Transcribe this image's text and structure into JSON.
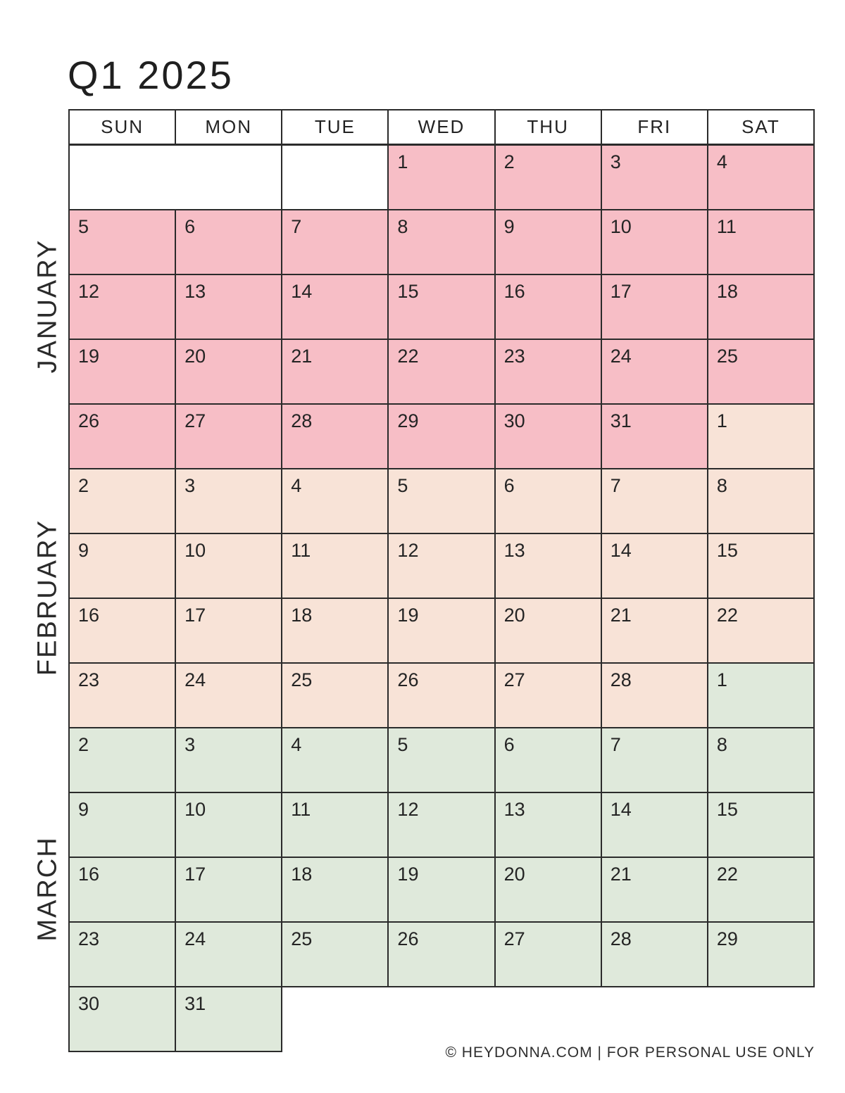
{
  "page": {
    "title": "Q1 2025",
    "footer": "© HEYDONNA.COM   |  FOR PERSONAL USE ONLY"
  },
  "colors": {
    "january_pink": "#f7bec6",
    "february_peach": "#f8e3d7",
    "march_green": "#dfe9db",
    "grid_border": "#2b2b2b"
  },
  "calendar": {
    "day_headers": [
      "SUN",
      "MON",
      "TUE",
      "WED",
      "THU",
      "FRI",
      "SAT"
    ],
    "month_labels": [
      "JANUARY",
      "FEBRUARY",
      "MARCH"
    ],
    "rows": [
      [
        {
          "m": "blank",
          "d": "",
          "span": 2
        },
        {
          "m": "blank",
          "d": ""
        },
        {
          "m": "jan",
          "d": "1"
        },
        {
          "m": "jan",
          "d": "2"
        },
        {
          "m": "jan",
          "d": "3"
        },
        {
          "m": "jan",
          "d": "4"
        }
      ],
      [
        {
          "m": "jan",
          "d": "5"
        },
        {
          "m": "jan",
          "d": "6"
        },
        {
          "m": "jan",
          "d": "7"
        },
        {
          "m": "jan",
          "d": "8"
        },
        {
          "m": "jan",
          "d": "9"
        },
        {
          "m": "jan",
          "d": "10"
        },
        {
          "m": "jan",
          "d": "11"
        }
      ],
      [
        {
          "m": "jan",
          "d": "12"
        },
        {
          "m": "jan",
          "d": "13"
        },
        {
          "m": "jan",
          "d": "14"
        },
        {
          "m": "jan",
          "d": "15"
        },
        {
          "m": "jan",
          "d": "16"
        },
        {
          "m": "jan",
          "d": "17"
        },
        {
          "m": "jan",
          "d": "18"
        }
      ],
      [
        {
          "m": "jan",
          "d": "19"
        },
        {
          "m": "jan",
          "d": "20"
        },
        {
          "m": "jan",
          "d": "21"
        },
        {
          "m": "jan",
          "d": "22"
        },
        {
          "m": "jan",
          "d": "23"
        },
        {
          "m": "jan",
          "d": "24"
        },
        {
          "m": "jan",
          "d": "25"
        }
      ],
      [
        {
          "m": "jan",
          "d": "26"
        },
        {
          "m": "jan",
          "d": "27"
        },
        {
          "m": "jan",
          "d": "28"
        },
        {
          "m": "jan",
          "d": "29"
        },
        {
          "m": "jan",
          "d": "30"
        },
        {
          "m": "jan",
          "d": "31"
        },
        {
          "m": "feb",
          "d": "1"
        }
      ],
      [
        {
          "m": "feb",
          "d": "2"
        },
        {
          "m": "feb",
          "d": "3"
        },
        {
          "m": "feb",
          "d": "4"
        },
        {
          "m": "feb",
          "d": "5"
        },
        {
          "m": "feb",
          "d": "6"
        },
        {
          "m": "feb",
          "d": "7"
        },
        {
          "m": "feb",
          "d": "8"
        }
      ],
      [
        {
          "m": "feb",
          "d": "9"
        },
        {
          "m": "feb",
          "d": "10"
        },
        {
          "m": "feb",
          "d": "11"
        },
        {
          "m": "feb",
          "d": "12"
        },
        {
          "m": "feb",
          "d": "13"
        },
        {
          "m": "feb",
          "d": "14"
        },
        {
          "m": "feb",
          "d": "15"
        }
      ],
      [
        {
          "m": "feb",
          "d": "16"
        },
        {
          "m": "feb",
          "d": "17"
        },
        {
          "m": "feb",
          "d": "18"
        },
        {
          "m": "feb",
          "d": "19"
        },
        {
          "m": "feb",
          "d": "20"
        },
        {
          "m": "feb",
          "d": "21"
        },
        {
          "m": "feb",
          "d": "22"
        }
      ],
      [
        {
          "m": "feb",
          "d": "23"
        },
        {
          "m": "feb",
          "d": "24"
        },
        {
          "m": "feb",
          "d": "25"
        },
        {
          "m": "feb",
          "d": "26"
        },
        {
          "m": "feb",
          "d": "27"
        },
        {
          "m": "feb",
          "d": "28"
        },
        {
          "m": "mar",
          "d": "1"
        }
      ],
      [
        {
          "m": "mar",
          "d": "2"
        },
        {
          "m": "mar",
          "d": "3"
        },
        {
          "m": "mar",
          "d": "4"
        },
        {
          "m": "mar",
          "d": "5"
        },
        {
          "m": "mar",
          "d": "6"
        },
        {
          "m": "mar",
          "d": "7"
        },
        {
          "m": "mar",
          "d": "8"
        }
      ],
      [
        {
          "m": "mar",
          "d": "9"
        },
        {
          "m": "mar",
          "d": "10"
        },
        {
          "m": "mar",
          "d": "11"
        },
        {
          "m": "mar",
          "d": "12"
        },
        {
          "m": "mar",
          "d": "13"
        },
        {
          "m": "mar",
          "d": "14"
        },
        {
          "m": "mar",
          "d": "15"
        }
      ],
      [
        {
          "m": "mar",
          "d": "16"
        },
        {
          "m": "mar",
          "d": "17"
        },
        {
          "m": "mar",
          "d": "18"
        },
        {
          "m": "mar",
          "d": "19"
        },
        {
          "m": "mar",
          "d": "20"
        },
        {
          "m": "mar",
          "d": "21"
        },
        {
          "m": "mar",
          "d": "22"
        }
      ],
      [
        {
          "m": "mar",
          "d": "23"
        },
        {
          "m": "mar",
          "d": "24"
        },
        {
          "m": "mar",
          "d": "25"
        },
        {
          "m": "mar",
          "d": "26"
        },
        {
          "m": "mar",
          "d": "27"
        },
        {
          "m": "mar",
          "d": "28"
        },
        {
          "m": "mar",
          "d": "29"
        }
      ],
      [
        {
          "m": "mar",
          "d": "30"
        },
        {
          "m": "mar",
          "d": "31"
        },
        {
          "m": "absent",
          "d": ""
        },
        {
          "m": "absent",
          "d": ""
        },
        {
          "m": "absent",
          "d": ""
        },
        {
          "m": "absent",
          "d": ""
        },
        {
          "m": "absent",
          "d": ""
        }
      ]
    ]
  }
}
